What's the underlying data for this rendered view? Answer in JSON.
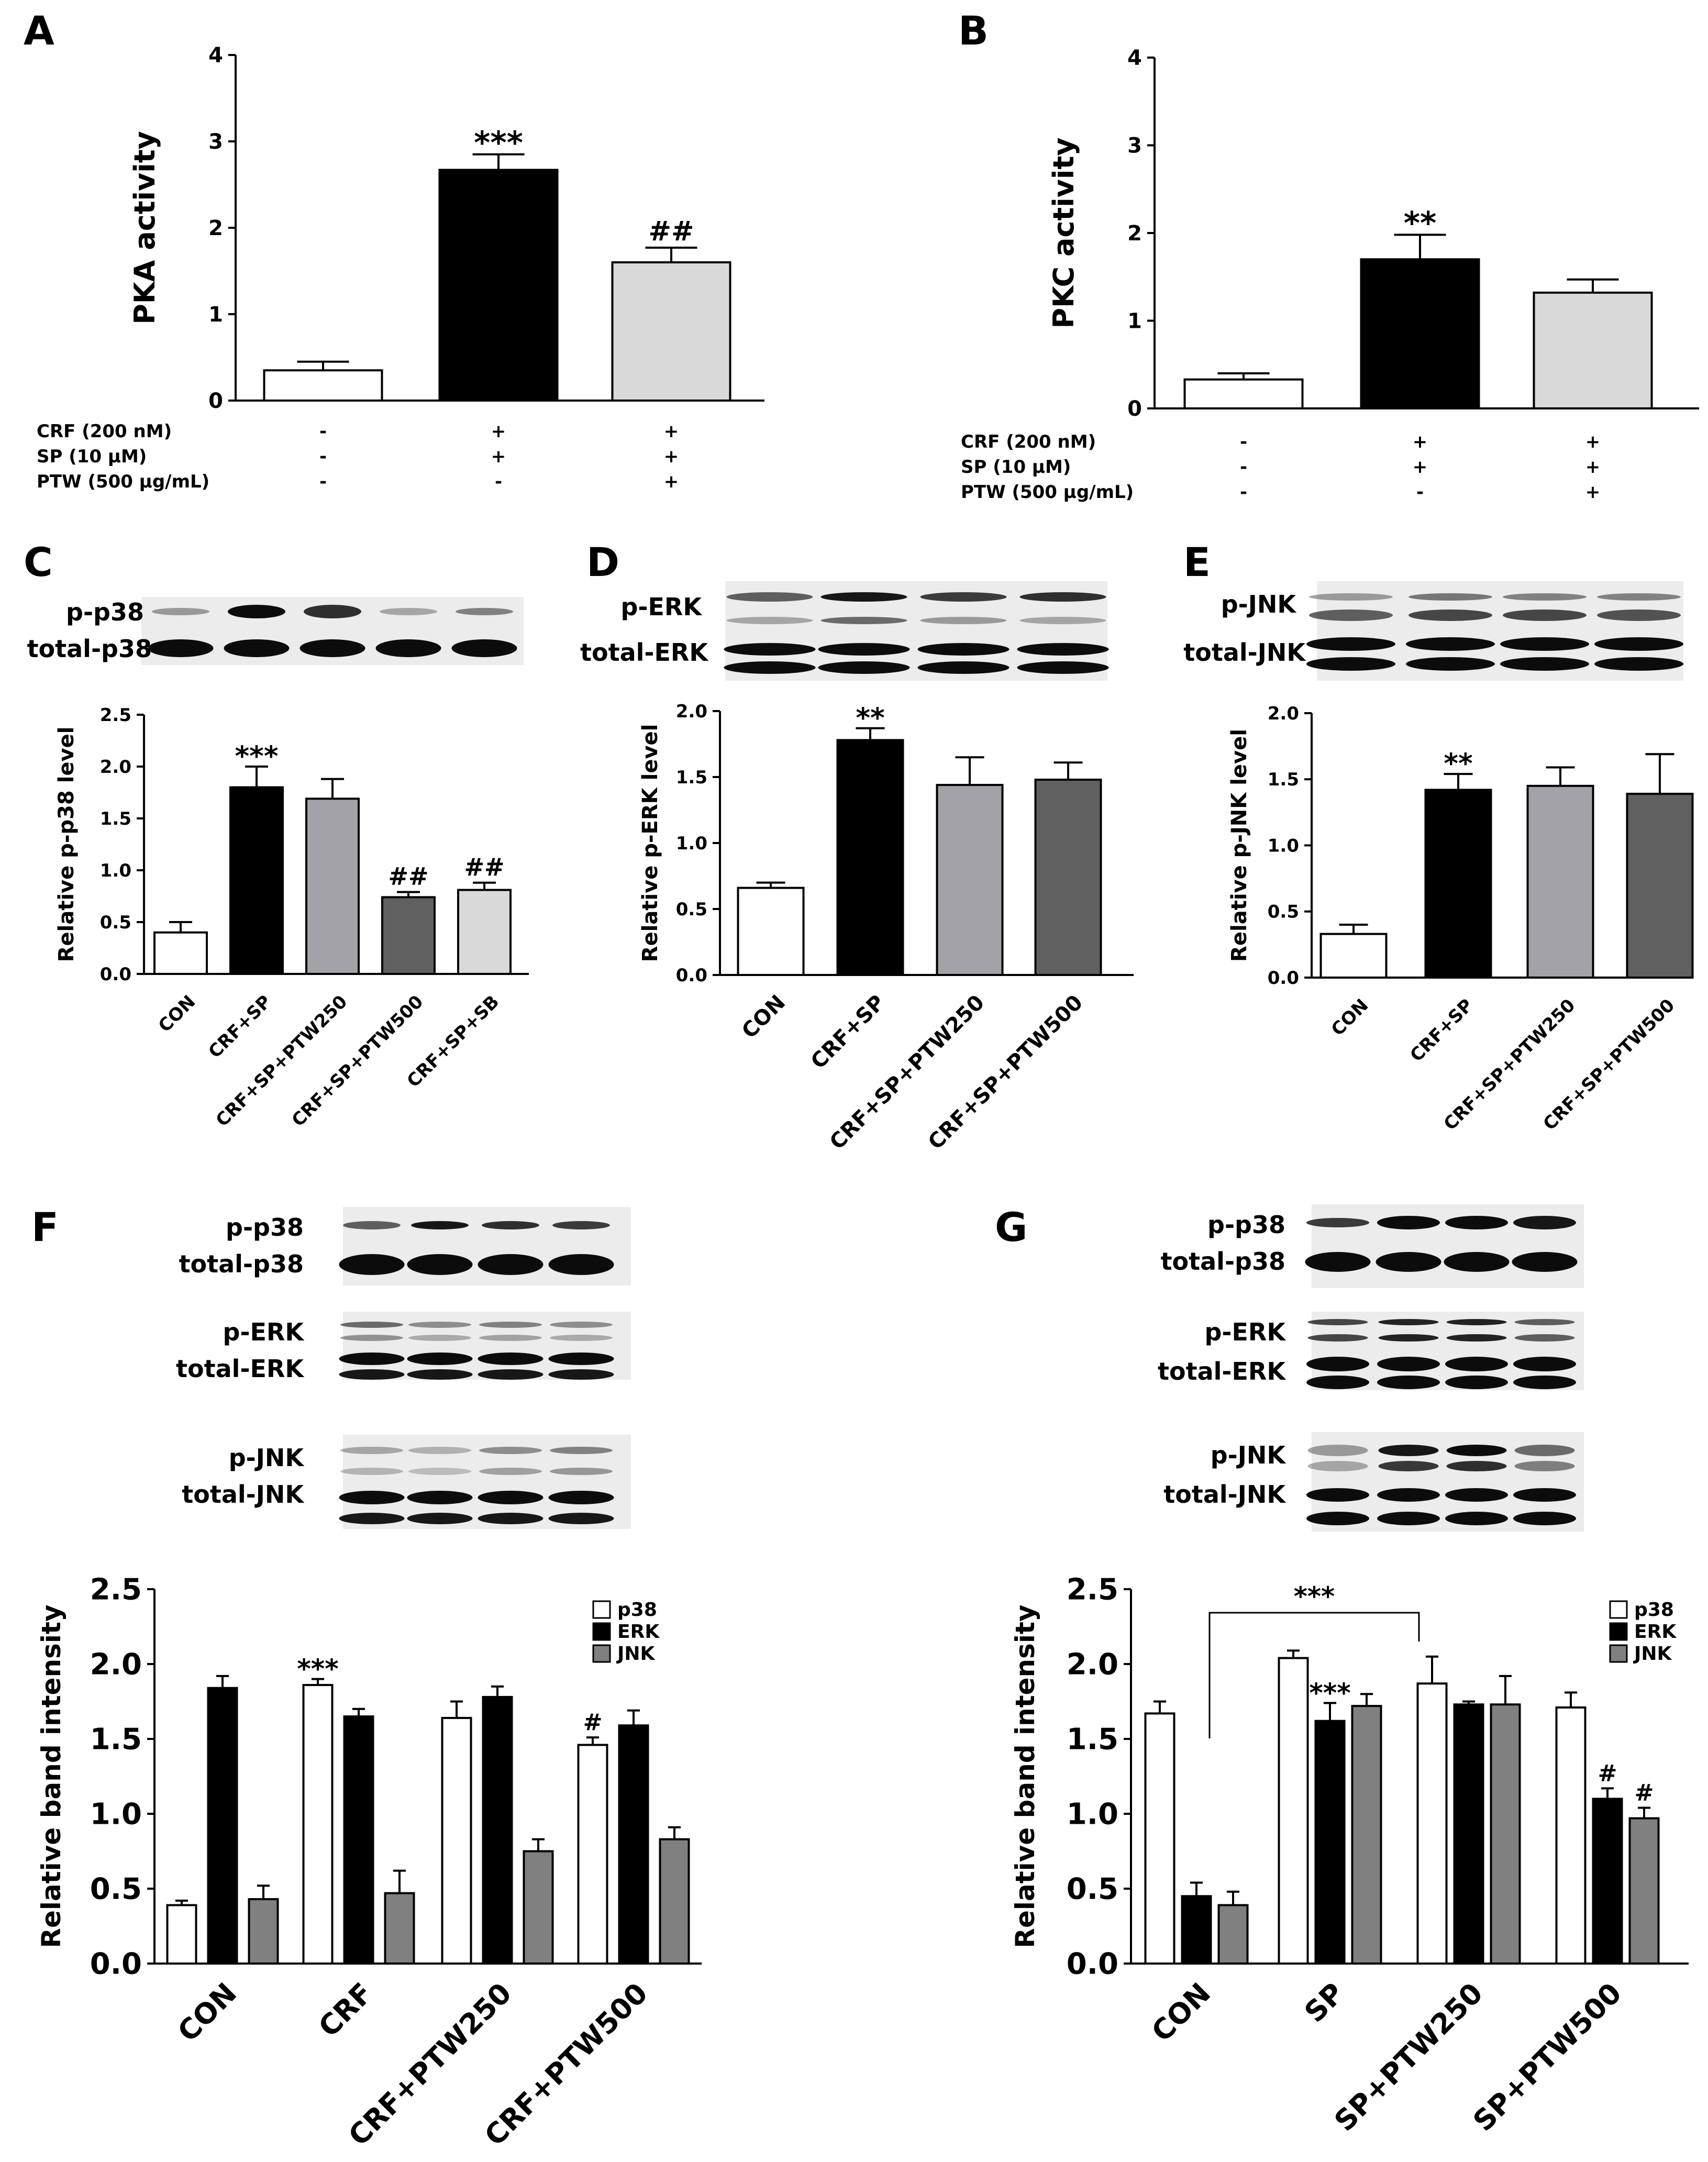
{
  "panels": {
    "A": "A",
    "B": "B",
    "C": "C",
    "D": "D",
    "E": "E",
    "F": "F",
    "G": "G"
  },
  "colors": {
    "white": "#ffffff",
    "black": "#000000",
    "light": "#d9d9d9",
    "mid": "#a3a3a7",
    "dark": "#606060",
    "gray": "#808080"
  },
  "treat_A": {
    "rows": [
      [
        "CRF (200 nM)",
        "-",
        "+",
        "+"
      ],
      [
        "SP (10 μM)",
        "-",
        "+",
        "+"
      ],
      [
        "PTW (500 μg/mL)",
        "-",
        "-",
        "+"
      ]
    ]
  },
  "treat_B": {
    "rows": [
      [
        "CRF (200 nM)",
        "-",
        "+",
        "+"
      ],
      [
        "SP (10 μM)",
        "-",
        "+",
        "+"
      ],
      [
        "PTW (500 μg/mL)",
        "-",
        "-",
        "+"
      ]
    ]
  },
  "blot_C": [
    "p-p38",
    "total-p38"
  ],
  "blot_D": [
    "p-ERK",
    "total-ERK"
  ],
  "blot_E": [
    "p-JNK",
    "total-JNK"
  ],
  "blot_F": [
    "p-p38",
    "total-p38",
    "p-ERK",
    "total-ERK",
    "p-JNK",
    "total-JNK"
  ],
  "blot_G": [
    "p-p38",
    "total-p38",
    "p-ERK",
    "total-ERK",
    "p-JNK",
    "total-JNK"
  ],
  "chart_data": [
    {
      "id": "A",
      "type": "bar",
      "title": "",
      "ylabel": "PKA activity",
      "xlabel": "",
      "ylim": [
        0,
        4
      ],
      "yticks": [
        "0",
        "1",
        "2",
        "3",
        "4"
      ],
      "categories": [
        "-",
        "+",
        "+"
      ],
      "values": [
        0.35,
        2.67,
        1.6
      ],
      "errors": [
        0.1,
        0.18,
        0.17
      ],
      "annotations": [
        "",
        "***",
        "##"
      ],
      "colors": [
        "#ffffff",
        "#000000",
        "#d9d9d9"
      ]
    },
    {
      "id": "B",
      "type": "bar",
      "title": "",
      "ylabel": "PKC activity",
      "xlabel": "",
      "ylim": [
        0,
        4
      ],
      "yticks": [
        "0",
        "1",
        "2",
        "3",
        "4"
      ],
      "categories": [
        "-",
        "+",
        "+"
      ],
      "values": [
        0.33,
        1.7,
        1.32
      ],
      "errors": [
        0.07,
        0.28,
        0.15
      ],
      "annotations": [
        "",
        "**",
        ""
      ],
      "colors": [
        "#ffffff",
        "#000000",
        "#d9d9d9"
      ]
    },
    {
      "id": "C",
      "type": "bar",
      "title": "",
      "ylabel": "Relative p-p38 level",
      "xlabel": "",
      "ylim": [
        0,
        2.5
      ],
      "yticks": [
        "0.0",
        "0.5",
        "1.0",
        "1.5",
        "2.0",
        "2.5"
      ],
      "categories": [
        "CON",
        "CRF+SP",
        "CRF+SP+PTW250",
        "CRF+SP+PTW500",
        "CRF+SP+SB"
      ],
      "values": [
        0.4,
        1.8,
        1.69,
        0.74,
        0.81
      ],
      "errors": [
        0.1,
        0.2,
        0.19,
        0.05,
        0.07
      ],
      "annotations": [
        "",
        "***",
        "",
        "##",
        "##"
      ],
      "colors": [
        "#ffffff",
        "#000000",
        "#a3a3a7",
        "#606060",
        "#d9d9d9"
      ]
    },
    {
      "id": "D",
      "type": "bar",
      "title": "",
      "ylabel": "Relative p-ERK level",
      "xlabel": "",
      "ylim": [
        0,
        2.0
      ],
      "yticks": [
        "0.0",
        "0.5",
        "1.0",
        "1.5",
        "2.0"
      ],
      "categories": [
        "CON",
        "CRF+SP",
        "CRF+SP+PTW250",
        "CRF+SP+PTW500"
      ],
      "values": [
        0.66,
        1.78,
        1.44,
        1.48
      ],
      "errors": [
        0.04,
        0.09,
        0.21,
        0.13
      ],
      "annotations": [
        "",
        "**",
        "",
        ""
      ],
      "colors": [
        "#ffffff",
        "#000000",
        "#a3a3a7",
        "#606060"
      ]
    },
    {
      "id": "E",
      "type": "bar",
      "title": "",
      "ylabel": "Relative p-JNK level",
      "xlabel": "",
      "ylim": [
        0,
        2.0
      ],
      "yticks": [
        "0.0",
        "0.5",
        "1.0",
        "1.5",
        "2.0"
      ],
      "categories": [
        "CON",
        "CRF+SP",
        "CRF+SP+PTW250",
        "CRF+SP+PTW500"
      ],
      "values": [
        0.33,
        1.42,
        1.45,
        1.39
      ],
      "errors": [
        0.07,
        0.12,
        0.14,
        0.3
      ],
      "annotations": [
        "",
        "**",
        "",
        ""
      ],
      "colors": [
        "#ffffff",
        "#000000",
        "#a3a3a7",
        "#606060"
      ]
    },
    {
      "id": "F",
      "type": "bar",
      "title": "",
      "ylabel": "Relative band intensity",
      "xlabel": "",
      "ylim": [
        0,
        2.5
      ],
      "yticks": [
        "0.0",
        "0.5",
        "1.0",
        "1.5",
        "2.0",
        "2.5"
      ],
      "categories": [
        "CON",
        "CRF",
        "CRF+PTW250",
        "CRF+PTW500"
      ],
      "series": [
        {
          "name": "p38",
          "color": "#ffffff",
          "values": [
            0.39,
            1.86,
            1.64,
            1.46
          ],
          "errors": [
            0.03,
            0.04,
            0.11,
            0.05
          ],
          "annotations": [
            "",
            "***",
            "",
            "#"
          ]
        },
        {
          "name": "ERK",
          "color": "#000000",
          "values": [
            1.84,
            1.65,
            1.78,
            1.59
          ],
          "errors": [
            0.08,
            0.05,
            0.07,
            0.1
          ],
          "annotations": [
            "",
            "",
            "",
            ""
          ]
        },
        {
          "name": "JNK",
          "color": "#808080",
          "values": [
            0.43,
            0.47,
            0.75,
            0.83
          ],
          "errors": [
            0.09,
            0.15,
            0.08,
            0.08
          ],
          "annotations": [
            "",
            "",
            "",
            ""
          ]
        }
      ],
      "legend": "top-right"
    },
    {
      "id": "G",
      "type": "bar",
      "title": "",
      "ylabel": "Relative band intensity",
      "xlabel": "",
      "ylim": [
        0,
        2.5
      ],
      "yticks": [
        "0.0",
        "0.5",
        "1.0",
        "1.5",
        "2.0",
        "2.5"
      ],
      "categories": [
        "CON",
        "SP",
        "SP+PTW250",
        "SP+PTW500"
      ],
      "series": [
        {
          "name": "p38",
          "color": "#ffffff",
          "values": [
            1.67,
            2.04,
            1.87,
            1.71
          ],
          "errors": [
            0.08,
            0.05,
            0.18,
            0.1
          ],
          "annotations": [
            "",
            "",
            "",
            ""
          ]
        },
        {
          "name": "ERK",
          "color": "#000000",
          "values": [
            0.45,
            1.62,
            1.73,
            1.1
          ],
          "errors": [
            0.09,
            0.12,
            0.02,
            0.07
          ],
          "annotations": [
            "",
            "***",
            "",
            "#"
          ]
        },
        {
          "name": "JNK",
          "color": "#808080",
          "values": [
            0.39,
            1.72,
            1.73,
            0.97
          ],
          "errors": [
            0.09,
            0.08,
            0.19,
            0.07
          ],
          "annotations": [
            "",
            "",
            "",
            "#"
          ]
        }
      ],
      "legend": "top-right",
      "bracket": {
        "label": "***",
        "from": "CON",
        "to": "SP"
      }
    }
  ]
}
